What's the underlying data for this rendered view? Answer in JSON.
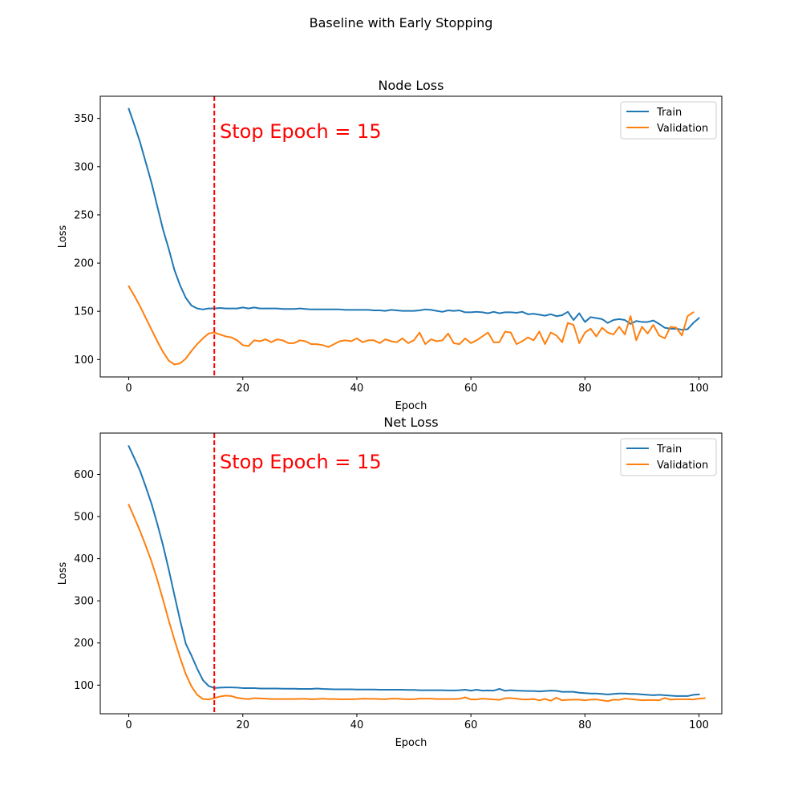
{
  "figure": {
    "suptitle": "Baseline with Early Stopping"
  },
  "colors": {
    "train": "#1f77b4",
    "validation": "#ff7f0e",
    "stop_line": "#ff0000",
    "annotation": "#ff0000"
  },
  "chart_data": [
    {
      "type": "line",
      "title": "Node Loss",
      "xlabel": "Epoch",
      "ylabel": "Loss",
      "xlim": [
        -5,
        104
      ],
      "ylim": [
        82,
        373
      ],
      "xticks": [
        0,
        20,
        40,
        60,
        80,
        100
      ],
      "yticks": [
        100,
        150,
        200,
        250,
        300,
        350
      ],
      "grid": false,
      "legend_location": "top-right",
      "stop_epoch": 15,
      "annotation": "Stop Epoch = 15",
      "series": [
        {
          "name": "Train",
          "color_key": "train",
          "values": [
            360,
            343,
            325,
            304,
            283,
            259,
            235,
            215,
            193,
            177,
            164,
            156,
            153,
            152,
            153,
            153,
            153.5,
            153,
            153,
            153,
            154,
            153,
            154,
            153,
            153,
            153,
            153,
            152.5,
            152.5,
            152.5,
            153,
            152.5,
            152,
            152,
            152,
            152,
            152,
            152,
            151.5,
            151.5,
            151.5,
            151.5,
            151.5,
            151,
            151,
            150.5,
            151.5,
            151,
            150.5,
            150.5,
            150.5,
            151,
            152,
            151.5,
            150.5,
            149.5,
            151,
            150.5,
            151,
            149,
            149,
            149.5,
            149,
            148,
            149.5,
            148,
            149,
            149,
            148.5,
            149.5,
            147,
            147.5,
            146.5,
            145.5,
            147,
            145,
            146,
            149.5,
            141,
            148,
            139,
            144,
            143,
            142,
            138,
            141,
            142,
            141,
            137,
            140,
            139,
            139,
            140.5,
            137,
            133,
            132,
            132,
            131,
            131.5,
            138,
            143
          ]
        },
        {
          "name": "Validation",
          "color_key": "validation",
          "values": [
            176,
            166,
            155,
            143,
            131,
            119,
            108,
            99,
            95,
            96,
            101,
            109,
            116,
            122,
            127,
            128,
            126,
            124,
            123,
            120,
            115,
            114,
            120,
            119,
            121,
            118,
            121,
            120,
            117,
            117,
            120,
            119,
            116,
            116,
            115,
            113,
            116,
            119,
            120,
            119,
            122,
            118,
            120,
            120,
            117,
            121,
            119,
            118,
            122,
            117,
            120,
            128,
            116,
            121,
            119,
            120,
            127,
            117,
            116,
            122,
            117,
            120,
            124,
            128,
            118,
            118,
            129,
            128,
            116,
            119,
            123,
            120,
            129,
            116,
            128,
            125,
            118,
            138,
            136,
            117,
            128,
            132,
            124,
            133,
            128,
            126,
            134,
            126,
            145,
            120,
            134,
            127,
            136,
            125,
            122,
            134,
            133,
            125,
            145,
            149
          ]
        }
      ]
    },
    {
      "type": "line",
      "title": "Net Loss",
      "xlabel": "Epoch",
      "ylabel": "Loss",
      "xlim": [
        -5,
        104
      ],
      "ylim": [
        32,
        698
      ],
      "xticks": [
        0,
        20,
        40,
        60,
        80,
        100
      ],
      "yticks": [
        100,
        200,
        300,
        400,
        500,
        600
      ],
      "grid": false,
      "legend_location": "top-right",
      "stop_epoch": 15,
      "annotation": "Stop Epoch = 15",
      "series": [
        {
          "name": "Train",
          "color_key": "train",
          "values": [
            667,
            638,
            608,
            570,
            530,
            483,
            432,
            375,
            314,
            254,
            198,
            170,
            139,
            112,
            98,
            93,
            94,
            94.5,
            94.5,
            94,
            93,
            93,
            93,
            92,
            92,
            92,
            92,
            91.5,
            91.5,
            91.5,
            91,
            91,
            91,
            92,
            91,
            90.5,
            90,
            90,
            90,
            90,
            89.5,
            89.5,
            89.5,
            89.5,
            89,
            89,
            89,
            89,
            89,
            88.5,
            88.5,
            88,
            88,
            88,
            88,
            88,
            87.5,
            87.5,
            88,
            89,
            87,
            89,
            87,
            87.5,
            87,
            91,
            86.5,
            88,
            87,
            86.5,
            86,
            86,
            85,
            86,
            87,
            86.5,
            84,
            84,
            84,
            82,
            81,
            80,
            80,
            79,
            78,
            79,
            80,
            80,
            79,
            79,
            78,
            77,
            76,
            77,
            76,
            75,
            74,
            74,
            74,
            77,
            78
          ]
        },
        {
          "name": "Validation",
          "color_key": "validation",
          "values": [
            528,
            497,
            465,
            430,
            393,
            350,
            303,
            254,
            208,
            165,
            126,
            97,
            77,
            67,
            66,
            69,
            73,
            75,
            74,
            70,
            68,
            67,
            69,
            68.5,
            68,
            67,
            67,
            67,
            67,
            67,
            67.5,
            67.5,
            66.5,
            67,
            68,
            67,
            67,
            66.5,
            66.5,
            66.5,
            67,
            68,
            67.5,
            67.5,
            67,
            66.5,
            68,
            68,
            67,
            66.5,
            66.5,
            68,
            68,
            68,
            67,
            67,
            67,
            67,
            67.5,
            71,
            66,
            66,
            68,
            67,
            66,
            65,
            69,
            69,
            68,
            66,
            66,
            67,
            64,
            67,
            63,
            70,
            64,
            65,
            65.5,
            65.5,
            64,
            65.5,
            66,
            64,
            62,
            65.5,
            65,
            68,
            67,
            65.5,
            64,
            64.5,
            64.5,
            64,
            69.5,
            65.5,
            66.5,
            66.5,
            66.5,
            66,
            68,
            69
          ]
        }
      ]
    }
  ]
}
